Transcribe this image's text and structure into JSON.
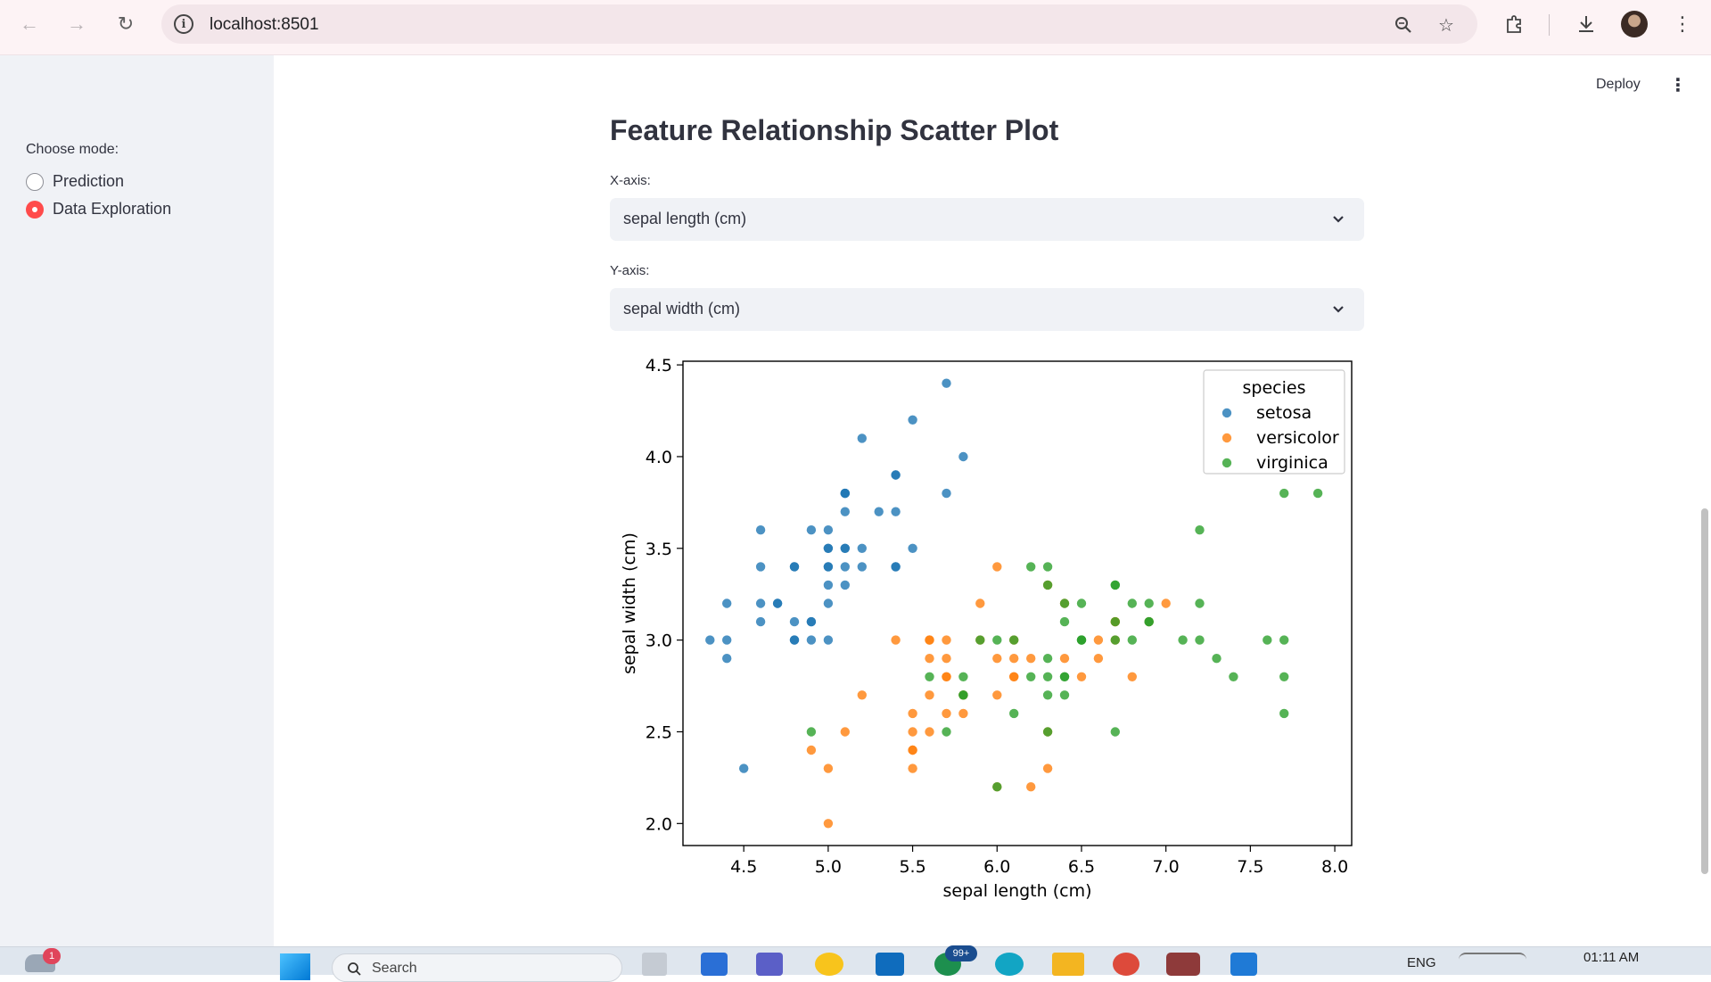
{
  "browser": {
    "url": "localhost:8501"
  },
  "header": {
    "deploy_label": "Deploy"
  },
  "sidebar": {
    "mode_label": "Choose mode:",
    "options": [
      {
        "label": "Prediction",
        "selected": false
      },
      {
        "label": "Data Exploration",
        "selected": true
      }
    ]
  },
  "main": {
    "title": "Feature Relationship Scatter Plot",
    "x_axis_label": "X-axis:",
    "x_axis_value": "sepal length (cm)",
    "y_axis_label": "Y-axis:",
    "y_axis_value": "sepal width (cm)"
  },
  "taskbar": {
    "search_placeholder": "Search",
    "lang": "ENG",
    "time": "01:11 AM",
    "weather_badge": "1",
    "teams_badge": "99+"
  },
  "colors": {
    "accent": "#ff4b4b",
    "setosa": "#1f77b4",
    "versicolor": "#ff7f0e",
    "virginica": "#2ca02c"
  },
  "chart_data": {
    "type": "scatter",
    "title": "",
    "xlabel": "sepal length (cm)",
    "ylabel": "sepal width (cm)",
    "xlim": [
      4.14,
      8.1
    ],
    "ylim": [
      1.88,
      4.52
    ],
    "xticks": [
      "4.5",
      "5.0",
      "5.5",
      "6.0",
      "6.5",
      "7.0",
      "7.5",
      "8.0"
    ],
    "yticks": [
      "2.0",
      "2.5",
      "3.0",
      "3.5",
      "4.0",
      "4.5"
    ],
    "legend_title": "species",
    "legend_position": "top-right",
    "series": [
      {
        "name": "setosa",
        "color": "#1f77b4",
        "points": [
          [
            5.1,
            3.5
          ],
          [
            4.9,
            3.0
          ],
          [
            4.7,
            3.2
          ],
          [
            4.6,
            3.1
          ],
          [
            5.0,
            3.6
          ],
          [
            5.4,
            3.9
          ],
          [
            4.6,
            3.4
          ],
          [
            5.0,
            3.4
          ],
          [
            4.4,
            2.9
          ],
          [
            4.9,
            3.1
          ],
          [
            5.4,
            3.7
          ],
          [
            4.8,
            3.4
          ],
          [
            4.8,
            3.0
          ],
          [
            4.3,
            3.0
          ],
          [
            5.8,
            4.0
          ],
          [
            5.7,
            4.4
          ],
          [
            5.4,
            3.9
          ],
          [
            5.1,
            3.5
          ],
          [
            5.7,
            3.8
          ],
          [
            5.1,
            3.8
          ],
          [
            5.4,
            3.4
          ],
          [
            5.1,
            3.7
          ],
          [
            4.6,
            3.6
          ],
          [
            5.1,
            3.3
          ],
          [
            4.8,
            3.4
          ],
          [
            5.0,
            3.0
          ],
          [
            5.0,
            3.4
          ],
          [
            5.2,
            3.5
          ],
          [
            5.2,
            3.4
          ],
          [
            4.7,
            3.2
          ],
          [
            4.8,
            3.1
          ],
          [
            5.4,
            3.4
          ],
          [
            5.2,
            4.1
          ],
          [
            5.5,
            4.2
          ],
          [
            4.9,
            3.1
          ],
          [
            5.0,
            3.2
          ],
          [
            5.5,
            3.5
          ],
          [
            4.9,
            3.6
          ],
          [
            4.4,
            3.0
          ],
          [
            5.1,
            3.4
          ],
          [
            5.0,
            3.5
          ],
          [
            4.5,
            2.3
          ],
          [
            4.4,
            3.2
          ],
          [
            5.0,
            3.5
          ],
          [
            5.1,
            3.8
          ],
          [
            4.8,
            3.0
          ],
          [
            5.1,
            3.8
          ],
          [
            4.6,
            3.2
          ],
          [
            5.3,
            3.7
          ],
          [
            5.0,
            3.3
          ]
        ]
      },
      {
        "name": "versicolor",
        "color": "#ff7f0e",
        "points": [
          [
            7.0,
            3.2
          ],
          [
            6.4,
            3.2
          ],
          [
            6.9,
            3.1
          ],
          [
            5.5,
            2.3
          ],
          [
            6.5,
            2.8
          ],
          [
            5.7,
            2.8
          ],
          [
            6.3,
            3.3
          ],
          [
            4.9,
            2.4
          ],
          [
            6.6,
            2.9
          ],
          [
            5.2,
            2.7
          ],
          [
            5.0,
            2.0
          ],
          [
            5.9,
            3.0
          ],
          [
            6.0,
            2.2
          ],
          [
            6.1,
            2.9
          ],
          [
            5.6,
            2.9
          ],
          [
            6.7,
            3.1
          ],
          [
            5.6,
            3.0
          ],
          [
            5.8,
            2.7
          ],
          [
            6.2,
            2.2
          ],
          [
            5.6,
            2.5
          ],
          [
            5.9,
            3.2
          ],
          [
            6.1,
            2.8
          ],
          [
            6.3,
            2.5
          ],
          [
            6.1,
            2.8
          ],
          [
            6.4,
            2.9
          ],
          [
            6.6,
            3.0
          ],
          [
            6.8,
            2.8
          ],
          [
            6.7,
            3.0
          ],
          [
            6.0,
            2.9
          ],
          [
            5.7,
            2.6
          ],
          [
            5.5,
            2.4
          ],
          [
            5.5,
            2.4
          ],
          [
            5.8,
            2.7
          ],
          [
            6.0,
            2.7
          ],
          [
            5.4,
            3.0
          ],
          [
            6.0,
            3.4
          ],
          [
            6.7,
            3.1
          ],
          [
            6.3,
            2.3
          ],
          [
            5.6,
            3.0
          ],
          [
            5.5,
            2.5
          ],
          [
            5.5,
            2.6
          ],
          [
            6.1,
            3.0
          ],
          [
            5.8,
            2.6
          ],
          [
            5.0,
            2.3
          ],
          [
            5.6,
            2.7
          ],
          [
            5.7,
            3.0
          ],
          [
            5.7,
            2.9
          ],
          [
            6.2,
            2.9
          ],
          [
            5.1,
            2.5
          ],
          [
            5.7,
            2.8
          ]
        ]
      },
      {
        "name": "virginica",
        "color": "#2ca02c",
        "points": [
          [
            6.3,
            3.3
          ],
          [
            5.8,
            2.7
          ],
          [
            7.1,
            3.0
          ],
          [
            6.3,
            2.9
          ],
          [
            6.5,
            3.0
          ],
          [
            7.6,
            3.0
          ],
          [
            4.9,
            2.5
          ],
          [
            7.3,
            2.9
          ],
          [
            6.7,
            2.5
          ],
          [
            7.2,
            3.6
          ],
          [
            6.5,
            3.2
          ],
          [
            6.4,
            2.7
          ],
          [
            6.8,
            3.0
          ],
          [
            5.7,
            2.5
          ],
          [
            5.8,
            2.8
          ],
          [
            6.4,
            3.2
          ],
          [
            6.5,
            3.0
          ],
          [
            7.7,
            3.8
          ],
          [
            7.7,
            2.6
          ],
          [
            6.0,
            2.2
          ],
          [
            6.9,
            3.2
          ],
          [
            5.6,
            2.8
          ],
          [
            7.7,
            2.8
          ],
          [
            6.3,
            2.7
          ],
          [
            6.7,
            3.3
          ],
          [
            7.2,
            3.2
          ],
          [
            6.2,
            2.8
          ],
          [
            6.1,
            3.0
          ],
          [
            6.4,
            2.8
          ],
          [
            7.2,
            3.0
          ],
          [
            7.4,
            2.8
          ],
          [
            7.9,
            3.8
          ],
          [
            6.4,
            2.8
          ],
          [
            6.3,
            2.8
          ],
          [
            6.1,
            2.6
          ],
          [
            7.7,
            3.0
          ],
          [
            6.3,
            3.4
          ],
          [
            6.4,
            3.1
          ],
          [
            6.0,
            3.0
          ],
          [
            6.9,
            3.1
          ],
          [
            6.7,
            3.1
          ],
          [
            6.9,
            3.1
          ],
          [
            5.8,
            2.7
          ],
          [
            6.8,
            3.2
          ],
          [
            6.7,
            3.3
          ],
          [
            6.7,
            3.0
          ],
          [
            6.3,
            2.5
          ],
          [
            6.5,
            3.0
          ],
          [
            6.2,
            3.4
          ],
          [
            5.9,
            3.0
          ]
        ]
      }
    ]
  }
}
